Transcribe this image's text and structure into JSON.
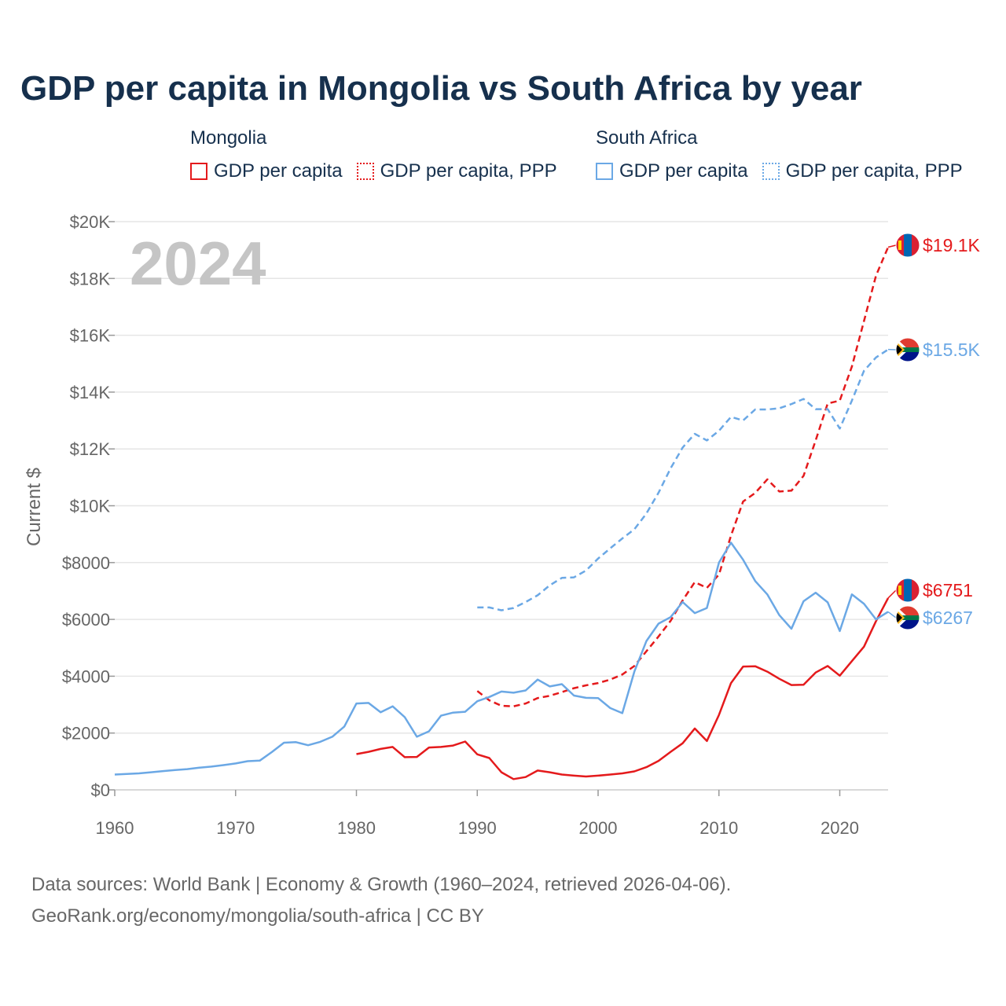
{
  "title": "GDP per capita in Mongolia vs South Africa by year",
  "legend": {
    "mongolia": {
      "name": "Mongolia",
      "items": [
        "GDP per capita",
        "GDP per capita, PPP"
      ],
      "color": "#e41a1c"
    },
    "south_africa": {
      "name": "South Africa",
      "items": [
        "GDP per capita",
        "GDP per capita, PPP"
      ],
      "color": "#6ba8e5"
    }
  },
  "footer": {
    "line1": "Data sources: World Bank | Economy & Growth (1960–2024, retrieved 2026-04-06).",
    "line2": "GeoRank.org/economy/mongolia/south-africa | CC BY"
  },
  "chart_data": {
    "type": "line",
    "title": "GDP per capita in Mongolia vs South Africa by year",
    "year_label": "2024",
    "ylabel": "Current $",
    "xlabel": "",
    "xlim": [
      1960,
      2024
    ],
    "ylim": [
      0,
      20000
    ],
    "x_ticks": [
      1960,
      1970,
      1980,
      1990,
      2000,
      2010,
      2020
    ],
    "x_tick_labels": [
      "1960",
      "1970",
      "1980",
      "1990",
      "2000",
      "2010",
      "2020"
    ],
    "y_ticks": [
      0,
      2000,
      4000,
      6000,
      8000,
      10000,
      12000,
      14000,
      16000,
      18000,
      20000
    ],
    "y_tick_labels": [
      "$0",
      "$2000",
      "$4000",
      "$6000",
      "$8000",
      "$10K",
      "$12K",
      "$14K",
      "$16K",
      "$18K",
      "$20K"
    ],
    "grid": true,
    "series": [
      {
        "name": "Mongolia GDP per capita",
        "color": "#e41a1c",
        "dash": "solid",
        "end_label": "$6751",
        "x": [
          1980,
          1981,
          1982,
          1983,
          1984,
          1985,
          1986,
          1987,
          1988,
          1989,
          1990,
          1991,
          1992,
          1993,
          1994,
          1995,
          1996,
          1997,
          1998,
          1999,
          2000,
          2001,
          2002,
          2003,
          2004,
          2005,
          2006,
          2007,
          2008,
          2009,
          2010,
          2011,
          2012,
          2013,
          2014,
          2015,
          2016,
          2017,
          2018,
          2019,
          2020,
          2021,
          2022,
          2023,
          2024
        ],
        "values": [
          1260,
          1340,
          1440,
          1510,
          1150,
          1160,
          1490,
          1510,
          1560,
          1700,
          1250,
          1120,
          620,
          380,
          450,
          680,
          620,
          540,
          500,
          470,
          500,
          540,
          580,
          650,
          800,
          1020,
          1340,
          1640,
          2160,
          1720,
          2640,
          3760,
          4340,
          4350,
          4160,
          3910,
          3690,
          3700,
          4130,
          4360,
          4020,
          4530,
          5040,
          5940,
          6751
        ]
      },
      {
        "name": "Mongolia GDP per capita, PPP",
        "color": "#e41a1c",
        "dash": "dashed",
        "end_label": "$19.1K",
        "x": [
          1990,
          1991,
          1992,
          1993,
          1994,
          1995,
          1996,
          1997,
          1998,
          1999,
          2000,
          2001,
          2002,
          2003,
          2004,
          2005,
          2006,
          2007,
          2008,
          2009,
          2010,
          2011,
          2012,
          2013,
          2014,
          2015,
          2016,
          2017,
          2018,
          2019,
          2020,
          2021,
          2022,
          2023,
          2024
        ],
        "values": [
          3480,
          3150,
          2960,
          2940,
          3040,
          3230,
          3310,
          3440,
          3580,
          3680,
          3760,
          3880,
          4060,
          4360,
          4880,
          5400,
          5950,
          6670,
          7310,
          7110,
          7580,
          8950,
          10150,
          10450,
          10930,
          10500,
          10530,
          11050,
          12300,
          13600,
          13700,
          14900,
          16500,
          18100,
          19100
        ]
      },
      {
        "name": "South Africa GDP per capita",
        "color": "#6ba8e5",
        "dash": "solid",
        "end_label": "$6267",
        "x": [
          1960,
          1961,
          1962,
          1963,
          1964,
          1965,
          1966,
          1967,
          1968,
          1969,
          1970,
          1971,
          1972,
          1973,
          1974,
          1975,
          1976,
          1977,
          1978,
          1979,
          1980,
          1981,
          1982,
          1983,
          1984,
          1985,
          1986,
          1987,
          1988,
          1989,
          1990,
          1991,
          1992,
          1993,
          1994,
          1995,
          1996,
          1997,
          1998,
          1999,
          2000,
          2001,
          2002,
          2003,
          2004,
          2005,
          2006,
          2007,
          2008,
          2009,
          2010,
          2011,
          2012,
          2013,
          2014,
          2015,
          2016,
          2017,
          2018,
          2019,
          2020,
          2021,
          2022,
          2023,
          2024
        ],
        "values": [
          540,
          560,
          580,
          620,
          660,
          700,
          730,
          780,
          820,
          870,
          930,
          1010,
          1030,
          1330,
          1660,
          1680,
          1570,
          1690,
          1870,
          2230,
          3040,
          3060,
          2730,
          2940,
          2560,
          1870,
          2060,
          2610,
          2720,
          2750,
          3120,
          3270,
          3460,
          3420,
          3500,
          3880,
          3640,
          3720,
          3320,
          3240,
          3230,
          2880,
          2700,
          4160,
          5240,
          5850,
          6080,
          6610,
          6220,
          6400,
          8000,
          8700,
          8100,
          7350,
          6880,
          6150,
          5670,
          6640,
          6940,
          6600,
          5590,
          6880,
          6550,
          6000,
          6267
        ]
      },
      {
        "name": "South Africa GDP per capita, PPP",
        "color": "#6ba8e5",
        "dash": "dashed",
        "end_label": "$15.5K",
        "x": [
          1990,
          1991,
          1992,
          1993,
          1994,
          1995,
          1996,
          1997,
          1998,
          1999,
          2000,
          2001,
          2002,
          2003,
          2004,
          2005,
          2006,
          2007,
          2008,
          2009,
          2010,
          2011,
          2012,
          2013,
          2014,
          2015,
          2016,
          2017,
          2018,
          2019,
          2020,
          2021,
          2022,
          2023,
          2024
        ],
        "values": [
          6420,
          6420,
          6320,
          6400,
          6610,
          6850,
          7200,
          7460,
          7480,
          7720,
          8140,
          8500,
          8850,
          9170,
          9730,
          10460,
          11320,
          12050,
          12530,
          12300,
          12640,
          13130,
          13000,
          13390,
          13390,
          13430,
          13580,
          13760,
          13400,
          13400,
          12720,
          13700,
          14750,
          15220,
          15500
        ]
      }
    ]
  }
}
